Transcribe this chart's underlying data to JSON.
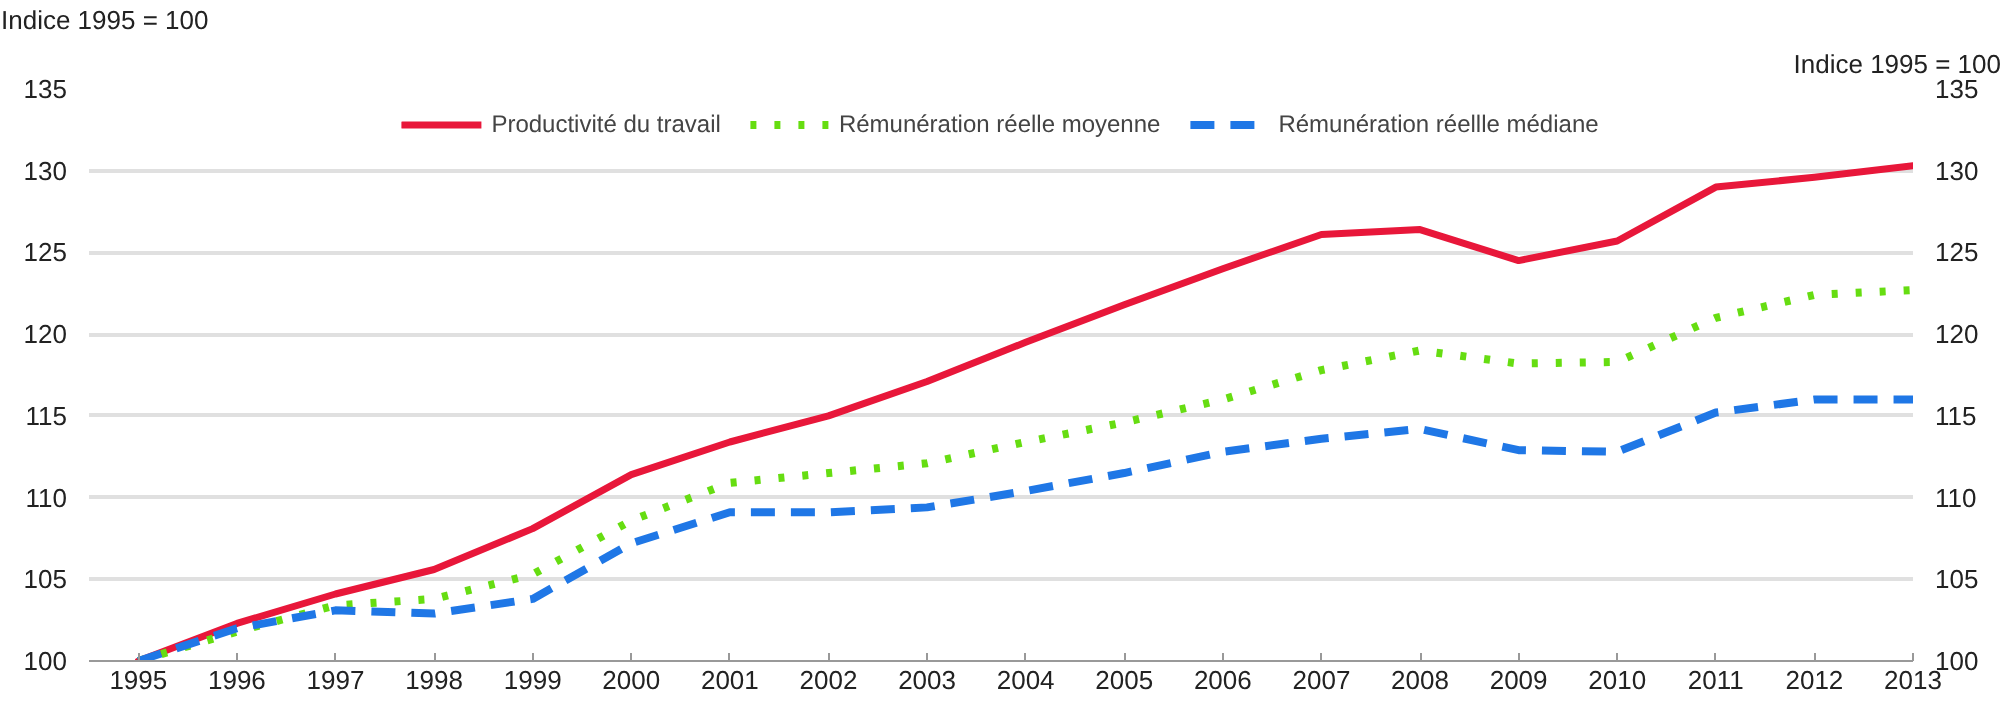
{
  "chart_data": {
    "type": "line",
    "ylabel": "Indice 1995 = 100",
    "y2label": "Indice 1995 = 100",
    "x": [
      1995,
      1996,
      1997,
      1998,
      1999,
      2000,
      2001,
      2002,
      2003,
      2004,
      2005,
      2006,
      2007,
      2008,
      2009,
      2010,
      2011,
      2012,
      2013
    ],
    "series": [
      {
        "name": "Productivité du travail",
        "color": "#e8173a",
        "line_style": "solid",
        "values": [
          100,
          102.3,
          104.1,
          105.6,
          108.1,
          111.4,
          113.4,
          115.0,
          117.1,
          119.5,
          121.8,
          124.0,
          126.1,
          126.4,
          124.5,
          125.7,
          129.0,
          129.6,
          130.3
        ]
      },
      {
        "name": "Rémunération réelle moyenne",
        "color": "#66dd11",
        "line_style": "dotted",
        "values": [
          100,
          101.8,
          103.4,
          103.8,
          105.3,
          108.6,
          110.9,
          111.5,
          112.1,
          113.4,
          114.6,
          116.0,
          117.8,
          119.0,
          118.2,
          118.3,
          121.0,
          122.4,
          122.7
        ]
      },
      {
        "name": "Rémunération réellle médiane",
        "color": "#1f77e6",
        "line_style": "dashed",
        "values": [
          100,
          102.0,
          103.1,
          102.9,
          103.8,
          107.2,
          109.1,
          109.1,
          109.4,
          110.4,
          111.5,
          112.8,
          113.6,
          114.2,
          112.9,
          112.8,
          115.2,
          116.0,
          116.0
        ]
      }
    ],
    "xlim": [
      1994.5,
      2013
    ],
    "xticks": [
      1995,
      1996,
      1997,
      1998,
      1999,
      2000,
      2001,
      2002,
      2003,
      2004,
      2005,
      2006,
      2007,
      2008,
      2009,
      2010,
      2011,
      2012,
      2013
    ],
    "ylim": [
      100,
      135
    ],
    "yticks": [
      100,
      105,
      110,
      115,
      120,
      125,
      130,
      135
    ],
    "y2lim": [
      100,
      135
    ],
    "y2ticks": [
      100,
      105,
      110,
      115,
      120,
      125,
      130,
      135
    ],
    "grid": "y",
    "legend": "top",
    "marker": "none"
  }
}
